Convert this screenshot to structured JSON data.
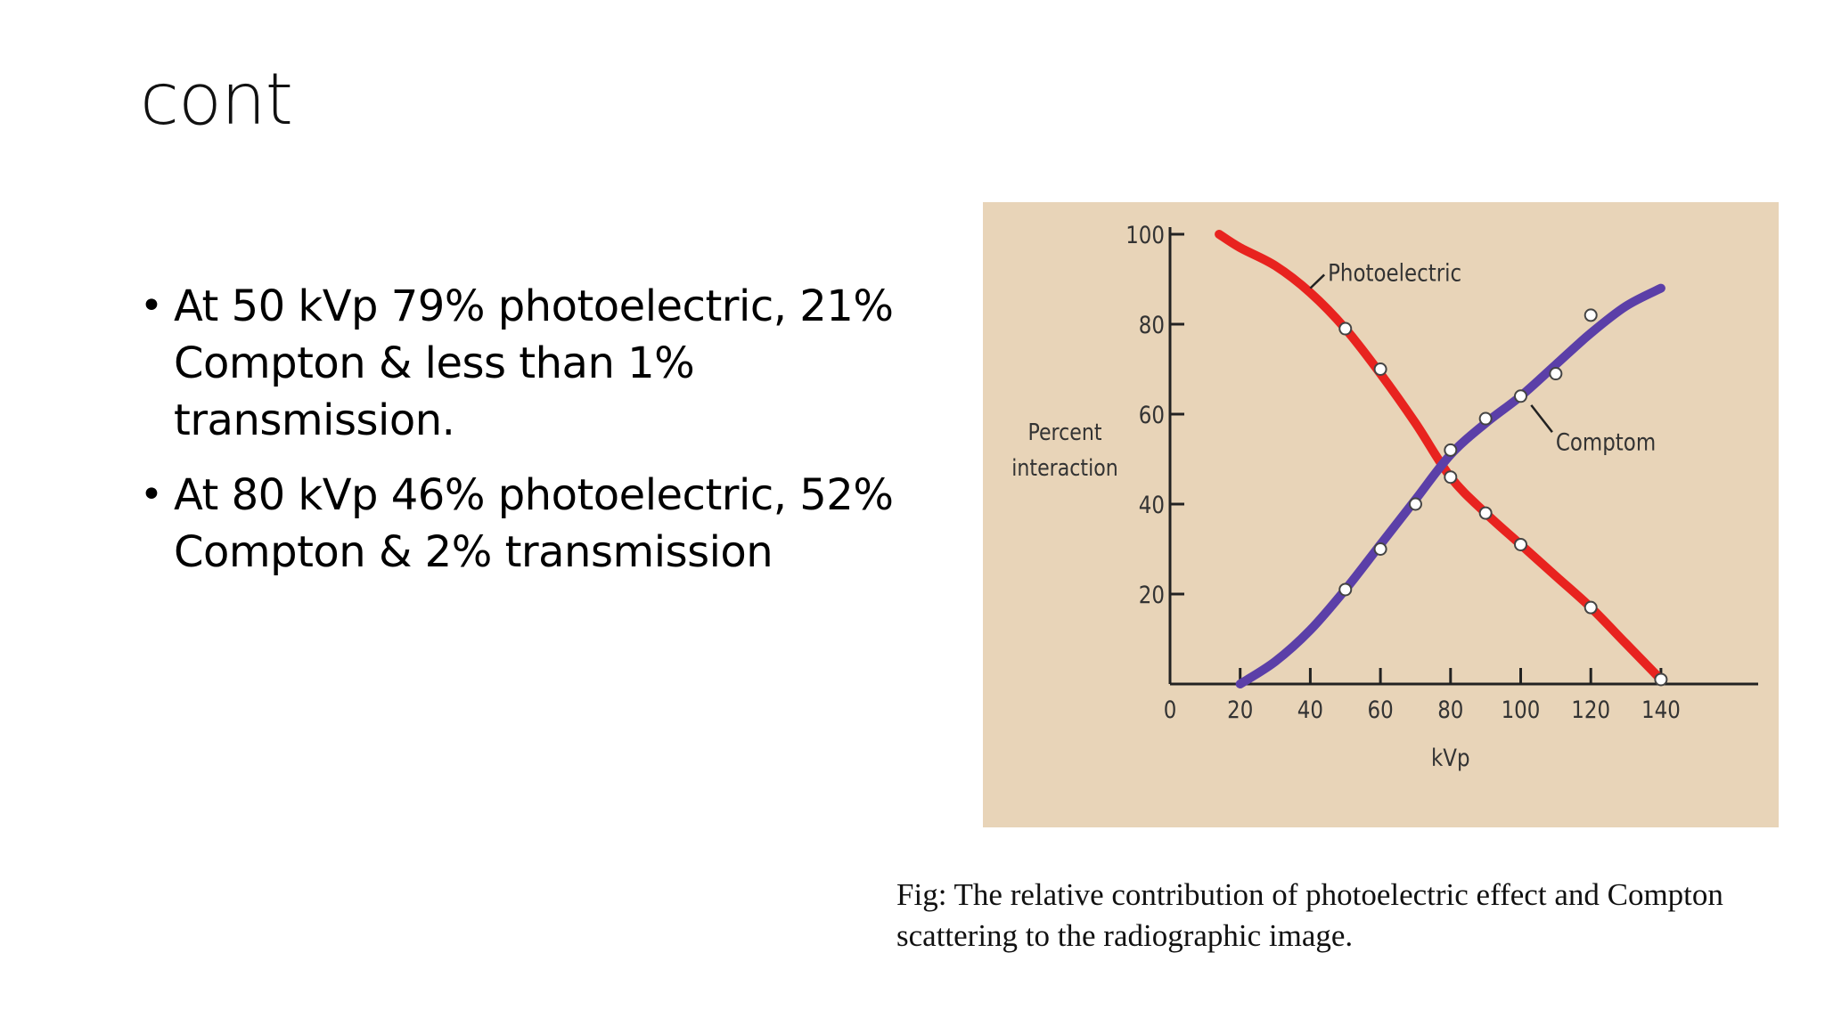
{
  "slide": {
    "title": "cont",
    "bullets": [
      "At 50 kVp 79% photoelectric, 21% Compton & less than 1% transmission.",
      "At 80 kVp 46% photoelectric, 52% Compton & 2% transmission"
    ],
    "bullet_marker": "•",
    "caption": "Fig: The relative contribution of photoelectric effect and Compton scattering to the radiographic image."
  },
  "chart_data": {
    "type": "line",
    "title": "",
    "xlabel": "kVp",
    "ylabel_lines": [
      "Percent",
      "interaction"
    ],
    "xlim": [
      0,
      150
    ],
    "ylim": [
      0,
      100
    ],
    "x_ticks": [
      0,
      20,
      40,
      60,
      80,
      100,
      120,
      140
    ],
    "y_ticks": [
      20,
      40,
      60,
      80,
      100
    ],
    "grid": false,
    "background_color": "#e8d4b8",
    "series": [
      {
        "name": "Photoelectric",
        "color": "#e8231f",
        "curve": [
          [
            14,
            100
          ],
          [
            20,
            97
          ],
          [
            30,
            93
          ],
          [
            40,
            87
          ],
          [
            50,
            79
          ],
          [
            60,
            69
          ],
          [
            70,
            58
          ],
          [
            80,
            46
          ],
          [
            90,
            38
          ],
          [
            100,
            31
          ],
          [
            110,
            24
          ],
          [
            120,
            17
          ],
          [
            130,
            9
          ],
          [
            140,
            1
          ]
        ],
        "points": [
          [
            50,
            79
          ],
          [
            60,
            70
          ],
          [
            80,
            46
          ],
          [
            90,
            38
          ],
          [
            100,
            31
          ],
          [
            120,
            17
          ],
          [
            140,
            1
          ]
        ]
      },
      {
        "name": "Comptom",
        "color": "#5b3fa8",
        "curve": [
          [
            20,
            0
          ],
          [
            30,
            5
          ],
          [
            40,
            12
          ],
          [
            50,
            21
          ],
          [
            60,
            31
          ],
          [
            70,
            41
          ],
          [
            80,
            51
          ],
          [
            90,
            58
          ],
          [
            100,
            64
          ],
          [
            110,
            71
          ],
          [
            120,
            78
          ],
          [
            130,
            84
          ],
          [
            140,
            88
          ]
        ],
        "points": [
          [
            50,
            21
          ],
          [
            60,
            30
          ],
          [
            70,
            40
          ],
          [
            80,
            52
          ],
          [
            90,
            59
          ],
          [
            100,
            64
          ],
          [
            110,
            69
          ],
          [
            120,
            82
          ]
        ]
      }
    ]
  }
}
